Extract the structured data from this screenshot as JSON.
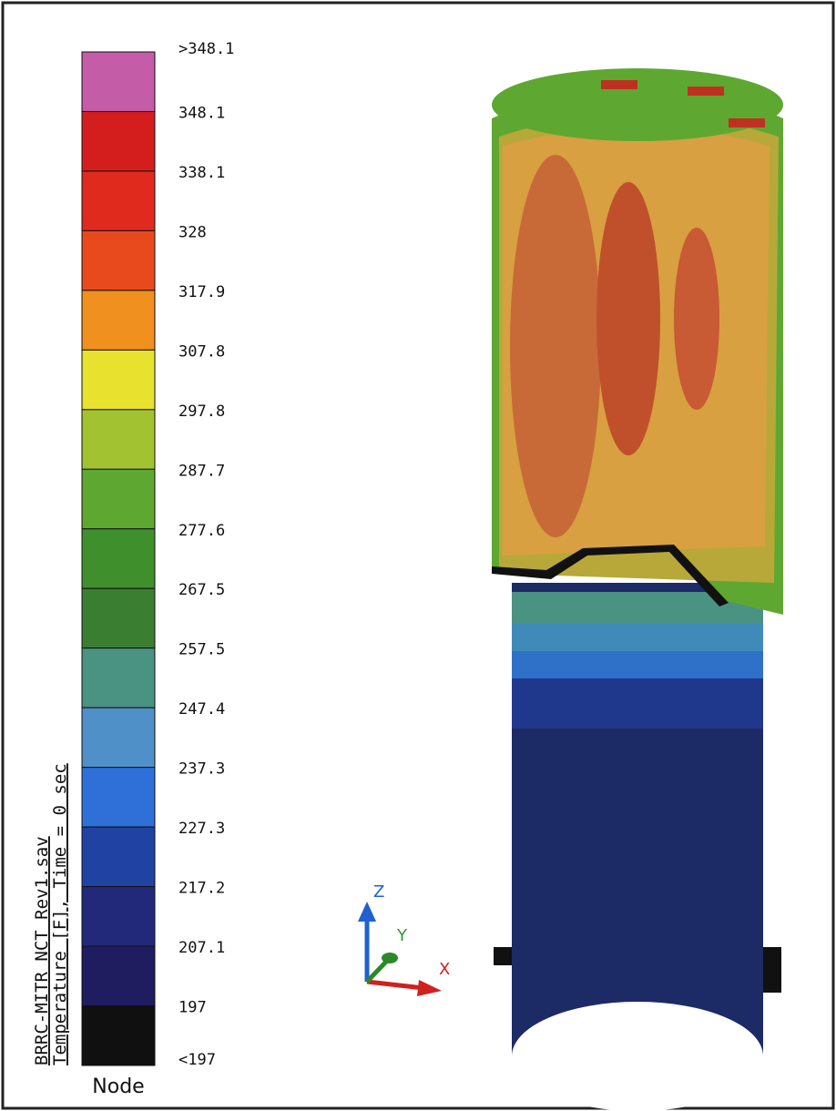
{
  "legend": {
    "labels": [
      ">348.1",
      "348.1",
      "338.1",
      "328",
      "317.9",
      "307.8",
      "297.8",
      "287.7",
      "277.6",
      "267.5",
      "257.5",
      "247.4",
      "237.3",
      "227.3",
      "217.2",
      "207.1",
      "197",
      "<197"
    ],
    "colors": [
      "#c45ca8",
      "#d41e1e",
      "#e02a1e",
      "#e84a1e",
      "#f0901e",
      "#e8e22e",
      "#a2c232",
      "#5ea832",
      "#3f902c",
      "#3a7e32",
      "#4a9282",
      "#5090c8",
      "#2f70d8",
      "#2042a2",
      "#22297a",
      "#201c60",
      "#101010"
    ],
    "footer": "Node"
  },
  "title": {
    "line1": "BRRC-MITR NCT Rev1.sav",
    "line2": "Temperature [F], Time = 0 sec"
  },
  "triad": {
    "z": "Z",
    "y": "Y",
    "x": "X"
  }
}
